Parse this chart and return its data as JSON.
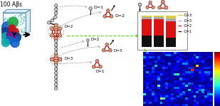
{
  "title": "100 Aβs",
  "background": "#ffffff",
  "node_color_salmon": "#e8906a",
  "node_color_gray": "#c8c8c8",
  "edge_color_dark": "#1a1a1a",
  "edge_color_red": "#cc0000",
  "D_labels": [
    "D>3",
    "D=3",
    "D=2",
    "D=1"
  ],
  "bar_blacks": [
    0.36,
    0.36,
    0.3
  ],
  "bar_reds": [
    0.52,
    0.52,
    0.52
  ],
  "bar_grays": [
    0.06,
    0.06,
    0.08
  ],
  "bar_tans": [
    0.06,
    0.06,
    0.1
  ],
  "heatmap_seed": 42,
  "cube_scatter_seed": 99,
  "blob_parts": [
    [
      12,
      128,
      11,
      "#1a5fbf"
    ],
    [
      22,
      138,
      9,
      "#22aa44"
    ],
    [
      8,
      118,
      10,
      "#0d3d8f"
    ],
    [
      25,
      120,
      7,
      "#cc1111"
    ],
    [
      10,
      108,
      11,
      "#11aaaa"
    ],
    [
      28,
      110,
      8,
      "#0d3d8f"
    ],
    [
      18,
      115,
      8,
      "#771188"
    ],
    [
      20,
      127,
      6,
      "#cc1111"
    ],
    [
      15,
      105,
      7,
      "#1a5fbf"
    ],
    [
      25,
      100,
      8,
      "#0d60cc"
    ],
    [
      8,
      100,
      7,
      "#11aaaa"
    ]
  ]
}
